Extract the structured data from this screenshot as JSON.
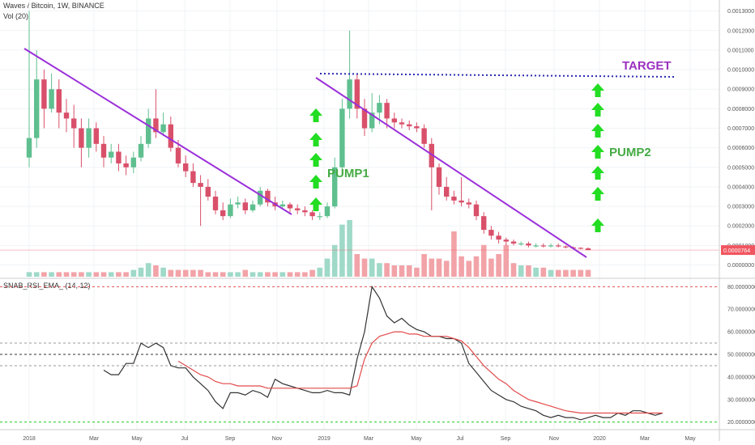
{
  "header": {
    "symbol_title": "Waves / Bitcoin, 1W, BINANCE",
    "volume_title": "Vol (20)",
    "indicator_title": "SNAB_RSI_EMA_ (14, 12)"
  },
  "colors": {
    "up": "#5fbf8f",
    "down": "#d9506a",
    "volume_up": "#9fd9c8",
    "volume_down": "#f2a3a8",
    "trendline": "#9b30d9",
    "target_line": "#2a2ab0",
    "arrow": "#22dd22",
    "pump_text": "#44aa44",
    "target_text": "#9b30c0",
    "rsi_line": "#333333",
    "ema_line": "#e24a4a",
    "price_tag": "#f05660"
  },
  "chart_data": [
    {
      "type": "candlestick",
      "title": "Waves / Bitcoin, 1W, BINANCE",
      "x_unit": "weekly candles",
      "x_tick_labels": [
        "2018",
        "Mar",
        "May",
        "Jul",
        "Sep",
        "Nov",
        "2019",
        "Mar",
        "May",
        "Jul",
        "Sep",
        "Nov",
        "2020",
        "Mar",
        "May"
      ],
      "y_tick_labels": [
        "0.0013000",
        "0.0012000",
        "0.0011000",
        "0.0010000",
        "0.0009000",
        "0.0008000",
        "0.0007000",
        "0.0006000",
        "0.0005000",
        "0.0004000",
        "0.0003000",
        "0.0002000",
        "0.0001000",
        "0.0000764",
        "0.0000000"
      ],
      "ylim": [
        -6e-05,
        0.00134
      ],
      "last_price": "0.0000764",
      "candles": [
        [
          0.00055,
          0.00065,
          0.0013,
          0.0005
        ],
        [
          0.00065,
          0.00095,
          0.0011,
          0.0006
        ],
        [
          0.00095,
          0.0008,
          0.001,
          0.0007
        ],
        [
          0.0008,
          0.0009,
          0.00098,
          0.00078
        ],
        [
          0.0009,
          0.00078,
          0.00095,
          0.0007
        ],
        [
          0.00078,
          0.00075,
          0.00085,
          0.00068
        ],
        [
          0.00075,
          0.0007,
          0.00082,
          0.0006
        ],
        [
          0.0007,
          0.0006,
          0.00075,
          0.0005
        ],
        [
          0.0006,
          0.0007,
          0.00075,
          0.00055
        ],
        [
          0.0007,
          0.00062,
          0.00073,
          0.00058
        ],
        [
          0.00062,
          0.00055,
          0.00066,
          0.0005
        ],
        [
          0.00055,
          0.00058,
          0.00062,
          0.00052
        ],
        [
          0.00058,
          0.00052,
          0.00062,
          0.00048
        ],
        [
          0.00052,
          0.0005,
          0.00056,
          0.00046
        ],
        [
          0.0005,
          0.00055,
          0.00058,
          0.00047
        ],
        [
          0.00055,
          0.00062,
          0.00066,
          0.00053
        ],
        [
          0.00062,
          0.00075,
          0.0008,
          0.0006
        ],
        [
          0.00075,
          0.00068,
          0.0009,
          0.00065
        ],
        [
          0.00068,
          0.00072,
          0.00078,
          0.00066
        ],
        [
          0.00072,
          0.0006,
          0.00076,
          0.00058
        ],
        [
          0.0006,
          0.00052,
          0.00064,
          0.0005
        ],
        [
          0.00052,
          0.00048,
          0.00056,
          0.00045
        ],
        [
          0.00048,
          0.00042,
          0.00052,
          0.0004
        ],
        [
          0.00042,
          0.0004,
          0.00046,
          0.0002
        ],
        [
          0.0004,
          0.00035,
          0.00044,
          0.00033
        ],
        [
          0.00035,
          0.00028,
          0.00038,
          0.00026
        ],
        [
          0.00028,
          0.00025,
          0.00032,
          0.00023
        ],
        [
          0.00025,
          0.00031,
          0.00034,
          0.00024
        ],
        [
          0.00031,
          0.00032,
          0.00035,
          0.00029
        ],
        [
          0.00032,
          0.00028,
          0.00034,
          0.00026
        ],
        [
          0.00028,
          0.00031,
          0.00033,
          0.00027
        ],
        [
          0.00031,
          0.00038,
          0.0004,
          0.0003
        ],
        [
          0.00038,
          0.00032,
          0.00039,
          0.0003
        ],
        [
          0.00032,
          0.0003,
          0.00035,
          0.00028
        ],
        [
          0.0003,
          0.00031,
          0.00033,
          0.00029
        ],
        [
          0.00031,
          0.00029,
          0.00032,
          0.00027
        ],
        [
          0.00029,
          0.00028,
          0.00031,
          0.00026
        ],
        [
          0.00028,
          0.00027,
          0.0003,
          0.00025
        ],
        [
          0.00027,
          0.00025,
          0.00028,
          0.00023
        ],
        [
          0.00025,
          0.00025,
          0.00027,
          0.00023
        ],
        [
          0.00025,
          0.0003,
          0.00032,
          0.00024
        ],
        [
          0.0003,
          0.0005,
          0.00055,
          0.00029
        ],
        [
          0.0005,
          0.0008,
          0.00085,
          0.00048
        ],
        [
          0.0008,
          0.00095,
          0.0012,
          0.00075
        ],
        [
          0.00095,
          0.0008,
          0.00098,
          0.00075
        ],
        [
          0.0008,
          0.0007,
          0.00085,
          0.00066
        ],
        [
          0.0007,
          0.00078,
          0.00088,
          0.00068
        ],
        [
          0.00078,
          0.00083,
          0.00087,
          0.00072
        ],
        [
          0.00083,
          0.00075,
          0.00085,
          0.0007
        ],
        [
          0.00075,
          0.00073,
          0.00078,
          0.0007
        ],
        [
          0.00073,
          0.00072,
          0.00075,
          0.0007
        ],
        [
          0.00072,
          0.00071,
          0.00074,
          0.00069
        ],
        [
          0.00071,
          0.0007,
          0.00073,
          0.00068
        ],
        [
          0.0007,
          0.00062,
          0.00072,
          0.0006
        ],
        [
          0.00062,
          0.0005,
          0.00065,
          0.00028
        ],
        [
          0.0005,
          0.0004,
          0.00052,
          0.00036
        ],
        [
          0.0004,
          0.00035,
          0.00045,
          0.00033
        ],
        [
          0.00035,
          0.00033,
          0.00038,
          0.00031
        ],
        [
          0.00033,
          0.00032,
          0.00045,
          0.0003
        ],
        [
          0.00032,
          0.00031,
          0.00034,
          0.00029
        ],
        [
          0.00031,
          0.00025,
          0.00033,
          0.00023
        ],
        [
          0.00025,
          0.00018,
          0.00027,
          0.00016
        ],
        [
          0.00018,
          0.00015,
          0.0002,
          0.00013
        ],
        [
          0.00015,
          0.00013,
          0.00017,
          0.00011
        ],
        [
          0.00013,
          0.00012,
          0.00014,
          0.0001
        ],
        [
          0.00012,
          0.00011,
          0.00013,
          0.0001
        ],
        [
          0.00011,
          0.00011,
          0.00012,
          0.0001
        ],
        [
          0.00011,
          0.0001,
          0.00012,
          9e-05
        ],
        [
          0.0001,
          0.0001,
          0.00011,
          9e-05
        ],
        [
          0.0001,
          9.5e-05,
          0.00011,
          9e-05
        ],
        [
          9.5e-05,
          0.0001,
          0.00011,
          9e-05
        ],
        [
          0.0001,
          9.5e-05,
          0.00011,
          9e-05
        ],
        [
          9.5e-05,
          9e-05,
          0.0001,
          8.5e-05
        ],
        [
          9e-05,
          8.8e-05,
          9.5e-05,
          8.4e-05
        ],
        [
          8.8e-05,
          8.5e-05,
          9e-05,
          8e-05
        ],
        [
          8.5e-05,
          7.64e-05,
          9e-05,
          7.5e-05
        ]
      ],
      "volume": [
        2,
        2,
        2,
        2,
        2,
        2,
        2,
        2,
        2,
        2,
        2,
        2,
        2,
        2,
        3,
        4,
        6,
        5,
        4,
        3,
        3,
        3,
        3,
        3,
        2,
        2,
        2,
        2,
        2,
        3,
        2,
        2,
        2,
        2,
        2,
        2,
        2,
        2,
        3,
        4,
        8,
        14,
        23,
        25,
        10,
        8,
        8,
        6,
        6,
        5,
        5,
        5,
        4,
        10,
        8,
        8,
        7,
        20,
        9,
        7,
        9,
        14,
        8,
        10,
        14,
        6,
        5,
        5,
        4,
        4,
        3,
        3,
        3,
        3,
        3,
        3
      ]
    },
    {
      "type": "line",
      "title": "SNAB_RSI_EMA_ (14, 12)",
      "y_tick_labels": [
        "80.0000000",
        "70.0000000",
        "60.0000000",
        "50.0000000",
        "40.0000000",
        "30.0000000",
        "20.0000000"
      ],
      "ylim": [
        17,
        83
      ],
      "levels": [
        80,
        55,
        50,
        45,
        20
      ],
      "series": [
        {
          "values": [
            43,
            41,
            41,
            46,
            46,
            55,
            53,
            55,
            53,
            45,
            44,
            44,
            40,
            37,
            34,
            29,
            26,
            33,
            33,
            32,
            34,
            33,
            31,
            39,
            37,
            36,
            35,
            34,
            33,
            33,
            34,
            33,
            33,
            32,
            48,
            60,
            80,
            75,
            67,
            64,
            66,
            63,
            61,
            60,
            58,
            58,
            57,
            57,
            55,
            46,
            42,
            38,
            34,
            32,
            30,
            29,
            27,
            26,
            25,
            23,
            22,
            23,
            22,
            22,
            21,
            22,
            23,
            22,
            22,
            24,
            23,
            25,
            25,
            24,
            23,
            24
          ]
        },
        {
          "values": [
            null,
            null,
            null,
            null,
            null,
            null,
            null,
            null,
            null,
            null,
            47,
            45,
            43,
            41,
            40,
            38,
            37,
            37,
            36,
            36,
            36,
            36,
            35,
            35,
            35,
            35,
            35,
            35,
            35,
            35,
            35,
            35,
            35,
            35,
            36,
            48,
            55,
            58,
            59,
            60,
            60,
            59,
            59,
            58,
            58,
            58,
            58,
            57,
            56,
            53,
            49,
            45,
            42,
            39,
            37,
            34,
            32,
            30,
            29,
            28,
            27,
            26,
            25,
            24.5,
            24,
            24,
            24,
            24,
            24,
            24,
            24,
            24,
            24,
            24,
            24,
            24
          ]
        }
      ]
    }
  ],
  "annotations": {
    "pump1": "PUMP1",
    "pump2": "PUMP2",
    "target": "TARGET"
  }
}
